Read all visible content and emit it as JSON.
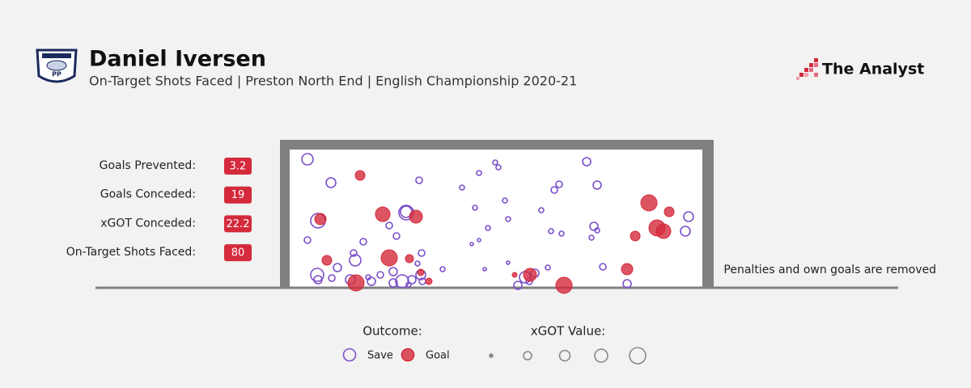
{
  "header": {
    "title": "Daniel Iversen",
    "subtitle": "On-Target Shots Faced | Preston North End | English Championship 2020-21",
    "badge_text": "PP",
    "brand": "The Analyst"
  },
  "stats": [
    {
      "label": "Goals Prevented:",
      "value": 3.2
    },
    {
      "label": "Goals Conceded:",
      "value": 19
    },
    {
      "label": "xGOT Conceded:",
      "value": 22.2
    },
    {
      "label": "On-Target Shots Faced:",
      "value": 80
    }
  ],
  "chart_data": {
    "type": "scatter",
    "note": "Penalties and own goals are removed",
    "xlim": [
      0,
      102
    ],
    "ylim": [
      0,
      34.2
    ],
    "legend_title": "Outcome:",
    "size_legend_title": "xGOT Value:",
    "size_legend": [
      0.05,
      0.35,
      0.5,
      0.65,
      0.85
    ],
    "series": [
      {
        "name": "Save",
        "color": "#7b4fc9",
        "x": [
          4.4,
          10.2,
          32,
          50.8,
          51.6,
          46.8,
          73.4,
          42.6,
          76,
          65.4,
          66.6,
          53.2,
          45.8,
          28.8,
          28.8,
          7,
          24.6,
          54,
          62.2,
          75.2,
          98.6,
          49,
          26.4,
          4.4,
          18.2,
          46.8,
          45,
          64.6,
          67.2,
          74.6,
          97.8,
          15.8,
          16.2,
          11.8,
          6.8,
          7,
          32.6,
          31.6,
          37.8,
          48.2,
          54,
          63.8,
          77.4,
          25.6,
          15,
          20.2,
          25.6,
          27.8,
          30.2,
          32.4,
          32.8,
          58.2,
          60.6,
          56.4,
          83.4,
          22.4,
          10.4,
          76,
          19.4,
          29.4,
          59.2
        ],
        "y": [
          31.8,
          26,
          26.6,
          31,
          29.8,
          28.4,
          31.2,
          24.8,
          25.4,
          24.2,
          25.6,
          21.6,
          19.8,
          18.8,
          18.6,
          16.6,
          15.4,
          17,
          19.2,
          15.2,
          17.6,
          14.8,
          12.8,
          11.8,
          11.4,
          11.8,
          10.8,
          14,
          13.4,
          12.4,
          14,
          8.6,
          6.8,
          5,
          3.2,
          2,
          8.6,
          6,
          4.6,
          4.6,
          6.2,
          5,
          5.2,
          4,
          2,
          1.6,
          1.2,
          1.6,
          2,
          3.2,
          1.6,
          2.6,
          3.6,
          0.6,
          1,
          3.2,
          2.4,
          14.2,
          2.6,
          0.8,
          1.6
        ],
        "sizes": [
          0.55,
          0.45,
          0.25,
          0.15,
          0.15,
          0.15,
          0.35,
          0.15,
          0.35,
          0.25,
          0.25,
          0.15,
          0.15,
          0.55,
          0.75,
          0.75,
          0.25,
          0.15,
          0.15,
          0.35,
          0.45,
          0.15,
          0.25,
          0.25,
          0.25,
          0.05,
          0.05,
          0.15,
          0.15,
          0.15,
          0.45,
          0.25,
          0.55,
          0.35,
          0.65,
          0.35,
          0.25,
          0.15,
          0.15,
          0.05,
          0.05,
          0.15,
          0.25,
          0.35,
          0.45,
          0.35,
          0.35,
          0.65,
          0.35,
          0.45,
          0.25,
          0.55,
          0.35,
          0.35,
          0.35,
          0.25,
          0.25,
          0.15,
          0.15,
          0.15,
          0.25
        ]
      },
      {
        "name": "Goal",
        "color": "#d42a3c",
        "x": [
          17.4,
          23,
          31.2,
          7.6,
          88.8,
          93.8,
          90.8,
          92.4,
          85.4,
          24.6,
          9.2,
          29.6,
          16.4,
          34.4,
          59.4,
          55.6,
          67.8,
          83.4,
          32.4
        ],
        "y": [
          27.8,
          18.2,
          17.6,
          17,
          21,
          18.8,
          14.8,
          14,
          12.8,
          7.4,
          6.8,
          7.2,
          1.2,
          1.6,
          3.2,
          3.2,
          0.6,
          4.6,
          3.8
        ],
        "sizes": [
          0.45,
          0.75,
          0.65,
          0.55,
          0.85,
          0.45,
          0.85,
          0.75,
          0.45,
          0.85,
          0.45,
          0.35,
          0.85,
          0.25,
          0.65,
          0.15,
          0.85,
          0.55,
          0.25
        ]
      }
    ]
  }
}
